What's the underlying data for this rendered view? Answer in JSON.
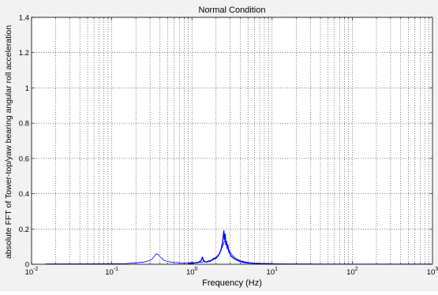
{
  "chart_data": {
    "type": "line",
    "title": "Normal Condition",
    "xlabel": "Frequency (Hz)",
    "ylabel": "absolute FFT of Tower-top/yaw bearing angular roll acceleration",
    "x_scale": "log",
    "xlim": [
      0.01,
      1000
    ],
    "ylim": [
      0,
      1.4
    ],
    "grid": true,
    "y_ticks": [
      {
        "value": 0,
        "label": "0"
      },
      {
        "value": 0.2,
        "label": "0.2"
      },
      {
        "value": 0.4,
        "label": "0.4"
      },
      {
        "value": 0.6,
        "label": "0.6"
      },
      {
        "value": 0.8,
        "label": "0.8"
      },
      {
        "value": 1.0,
        "label": "1"
      },
      {
        "value": 1.2,
        "label": "1.2"
      },
      {
        "value": 1.4,
        "label": "1.4"
      }
    ],
    "x_ticks": [
      {
        "value": 0.01,
        "base": "10",
        "exp": "-2"
      },
      {
        "value": 0.1,
        "base": "10",
        "exp": "-1"
      },
      {
        "value": 1,
        "base": "10",
        "exp": "0"
      },
      {
        "value": 10,
        "base": "10",
        "exp": "1"
      },
      {
        "value": 100,
        "base": "10",
        "exp": "2"
      },
      {
        "value": 1000,
        "base": "10",
        "exp": "3"
      }
    ],
    "series": [
      {
        "color": "#0000ff",
        "x": [
          0.015,
          0.05,
          0.1,
          0.15,
          0.2,
          0.25,
          0.28,
          0.3,
          0.32,
          0.34,
          0.36,
          0.38,
          0.4,
          0.42,
          0.45,
          0.5,
          0.55,
          0.6,
          0.7,
          0.8,
          0.9,
          1.0,
          1.1,
          1.2,
          1.3,
          1.4,
          1.5,
          1.6,
          1.7,
          1.8,
          2.0,
          2.2,
          2.4,
          2.5,
          2.6,
          2.7,
          2.8,
          2.9,
          3.0,
          3.2,
          3.5,
          4.0,
          5,
          6,
          8,
          10,
          15,
          20,
          50,
          100,
          300,
          1000
        ],
        "y": [
          0.002,
          0.002,
          0.003,
          0.004,
          0.008,
          0.012,
          0.018,
          0.022,
          0.03,
          0.045,
          0.06,
          0.055,
          0.042,
          0.035,
          0.022,
          0.015,
          0.012,
          0.01,
          0.008,
          0.007,
          0.008,
          0.01,
          0.009,
          0.012,
          0.01,
          0.015,
          0.012,
          0.02,
          0.015,
          0.03,
          0.04,
          0.06,
          0.1,
          0.12,
          0.14,
          0.12,
          0.1,
          0.08,
          0.07,
          0.05,
          0.035,
          0.02,
          0.01,
          0.006,
          0.004,
          0.003,
          0.002,
          0.002,
          0.001,
          0.001,
          0.001,
          0.001
        ]
      },
      {
        "color": "#0000ff",
        "x": [
          0.9,
          1.0,
          1.1,
          1.2,
          1.3,
          1.35,
          1.4,
          1.5,
          1.6,
          1.7,
          1.8,
          1.9,
          2.0,
          2.1,
          2.2,
          2.3,
          2.4,
          2.45,
          2.5,
          2.55,
          2.6,
          2.65,
          2.7,
          2.75,
          2.8,
          2.85,
          2.9,
          3.0,
          3.1,
          3.2,
          3.4,
          3.6,
          3.8,
          4.0,
          4.5,
          5.0,
          6.0,
          8.0,
          10.0
        ],
        "y": [
          0.003,
          0.005,
          0.008,
          0.01,
          0.02,
          0.04,
          0.02,
          0.012,
          0.015,
          0.02,
          0.025,
          0.03,
          0.035,
          0.045,
          0.06,
          0.08,
          0.12,
          0.15,
          0.19,
          0.14,
          0.17,
          0.11,
          0.13,
          0.09,
          0.11,
          0.08,
          0.07,
          0.055,
          0.045,
          0.04,
          0.03,
          0.025,
          0.02,
          0.015,
          0.01,
          0.008,
          0.005,
          0.003,
          0.002
        ]
      }
    ]
  }
}
